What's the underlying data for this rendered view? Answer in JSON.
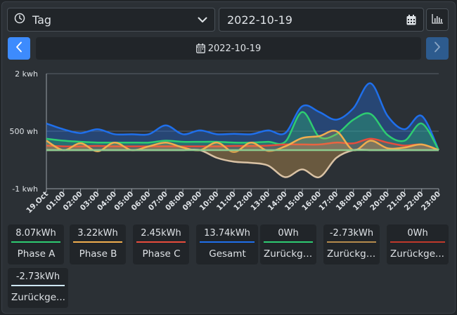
{
  "period_select": {
    "value": "Tag",
    "icon": "clock-icon"
  },
  "date_input": {
    "value": "2022-10-19",
    "icon": "calendar-icon"
  },
  "chart_toggle": {
    "icon": "bar-chart-icon"
  },
  "nav": {
    "prev_icon": "chevron-left-icon",
    "next_icon": "chevron-right-icon",
    "current_date": "2022-10-19"
  },
  "tiles": [
    {
      "value": "8.07kWh",
      "label": "Phase A",
      "color": "#2ecc71"
    },
    {
      "value": "3.22kWh",
      "label": "Phase B",
      "color": "#f0ad4e"
    },
    {
      "value": "2.45kWh",
      "label": "Phase C",
      "color": "#e74c3c"
    },
    {
      "value": "13.74kWh",
      "label": "Gesamt",
      "color": "#1f6feb"
    },
    {
      "value": "0Wh",
      "label": "Zurückge...",
      "color": "#2ecc71"
    },
    {
      "value": "-2.73kWh",
      "label": "Zurückge...",
      "color": "#b58b4c"
    },
    {
      "value": "0Wh",
      "label": "Zurückge...",
      "color": "#c0392b"
    },
    {
      "value": "-2.73kWh",
      "label": "Zurückge...",
      "color": "#cfe8ff"
    }
  ],
  "chart_data": {
    "type": "area",
    "x": [
      "19.Oct",
      "01:00",
      "02:00",
      "03:00",
      "04:00",
      "05:00",
      "06:00",
      "07:00",
      "08:00",
      "09:00",
      "10:00",
      "11:00",
      "12:00",
      "13:00",
      "14:00",
      "15:00",
      "16:00",
      "17:00",
      "18:00",
      "19:00",
      "20:00",
      "21:00",
      "22:00",
      "23:00"
    ],
    "y_ticks": [
      "2 kwh",
      "500 wh",
      "-1 kwh"
    ],
    "ylim": [
      -1000,
      2000
    ],
    "grid": true,
    "series": [
      {
        "color": "#1f6feb",
        "fill": "rgba(31,111,235,0.35)",
        "values": [
          700,
          550,
          450,
          550,
          420,
          420,
          420,
          650,
          420,
          520,
          420,
          430,
          420,
          520,
          450,
          1150,
          1000,
          800,
          1100,
          1750,
          900,
          550,
          900,
          0
        ]
      },
      {
        "color": "#2ecc71",
        "fill": "rgba(46,204,113,0.30)",
        "values": [
          300,
          250,
          220,
          200,
          200,
          200,
          200,
          250,
          220,
          220,
          220,
          200,
          200,
          220,
          220,
          1000,
          350,
          420,
          800,
          950,
          400,
          250,
          700,
          0
        ]
      },
      {
        "color": "#e74c3c",
        "fill": "rgba(231,76,60,0.25)",
        "values": [
          120,
          100,
          100,
          110,
          100,
          100,
          100,
          100,
          100,
          100,
          100,
          110,
          110,
          120,
          150,
          150,
          150,
          200,
          180,
          300,
          200,
          120,
          150,
          0
        ]
      },
      {
        "color": "#f0ad4e",
        "fill": "rgba(240,173,78,0.25)",
        "values": [
          250,
          0,
          180,
          -30,
          200,
          0,
          100,
          200,
          70,
          0,
          200,
          -50,
          200,
          -20,
          100,
          320,
          370,
          500,
          0,
          250,
          50,
          70,
          150,
          0
        ]
      },
      {
        "color": "#d9c2a5",
        "fill": "rgba(181,139,76,0.45)",
        "values": [
          0,
          0,
          0,
          0,
          0,
          0,
          0,
          0,
          0,
          0,
          -200,
          -300,
          -330,
          -400,
          -700,
          -500,
          -700,
          -200,
          0,
          0,
          0,
          0,
          0,
          0
        ]
      },
      {
        "color": "#8dc98d",
        "fill": "rgba(0,0,0,0)",
        "values": [
          0,
          0,
          0,
          0,
          0,
          0,
          0,
          0,
          0,
          0,
          0,
          0,
          0,
          0,
          0,
          0,
          0,
          0,
          0,
          0,
          0,
          0,
          0,
          0
        ]
      }
    ]
  }
}
